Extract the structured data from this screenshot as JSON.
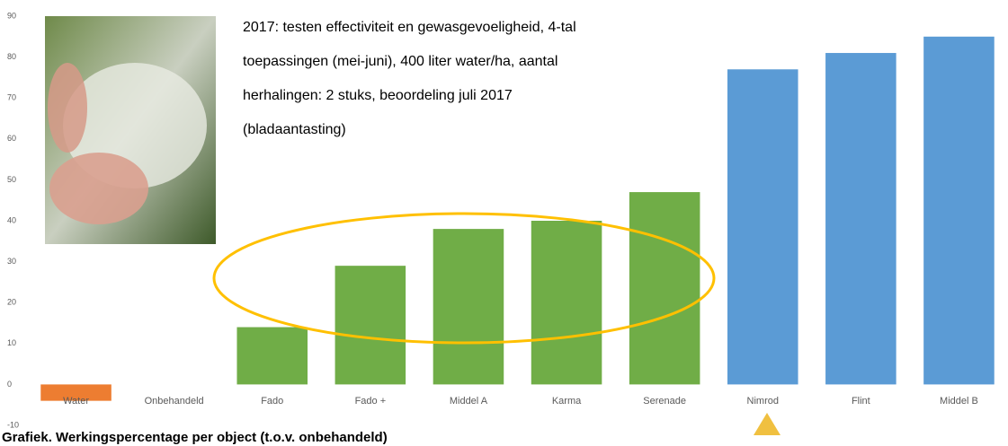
{
  "chart_data": {
    "type": "bar",
    "title": "Grafiek.  Werkingspercentage per object (t.o.v. onbehandeld)",
    "annotation": [
      "2017: testen effectiviteit en gewasgevoeligheid, 4-tal",
      "toepassingen (mei-juni), 400 liter water/ha, aantal",
      "herhalingen: 2 stuks, beoordeling juli 2017",
      "(bladaantasting)"
    ],
    "categories": [
      "Water",
      "Onbehandeld",
      "Fado",
      "Fado +",
      "Middel A",
      "Karma",
      "Serenade",
      "Nimrod",
      "Flint",
      "Middel B"
    ],
    "values": [
      -4,
      0,
      14,
      29,
      38,
      40,
      47,
      77,
      81,
      85
    ],
    "colors": [
      "#ed7d31",
      "#70ad47",
      "#70ad47",
      "#70ad47",
      "#70ad47",
      "#70ad47",
      "#70ad47",
      "#5b9bd5",
      "#5b9bd5",
      "#5b9bd5"
    ],
    "ylim": [
      -10,
      90
    ],
    "yticks": [
      -10,
      0,
      10,
      20,
      30,
      40,
      50,
      60,
      70,
      80,
      90
    ],
    "grid": false
  }
}
